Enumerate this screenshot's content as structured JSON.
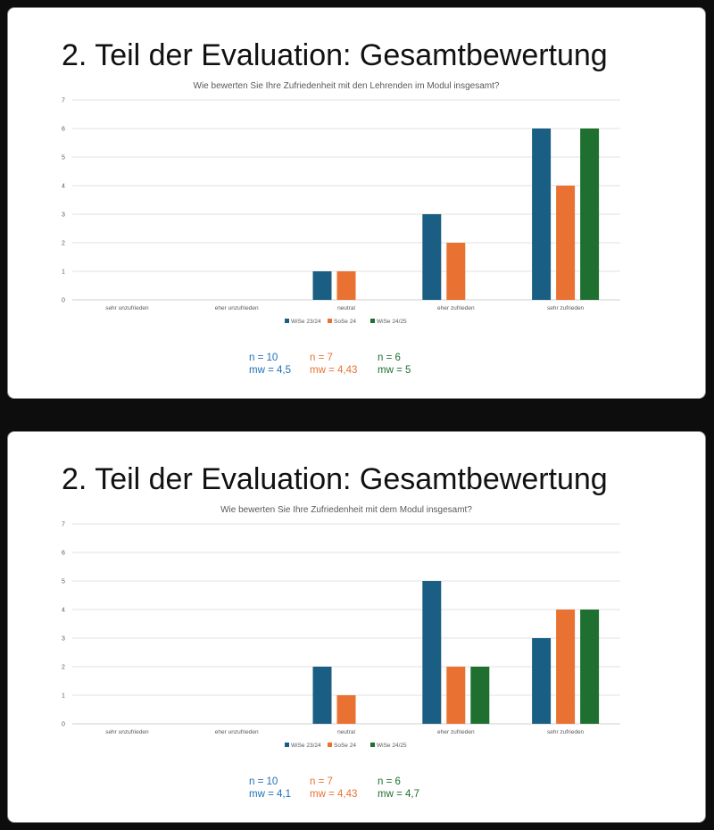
{
  "slides": [
    {
      "title": "2. Teil der Evaluation: Gesamtbewertung",
      "chart_data": {
        "type": "bar",
        "title": "Wie bewerten Sie Ihre Zufriedenheit mit den Lehrenden im Modul insgesamt?",
        "categories": [
          "sehr unzufrieden",
          "eher unzufrieden",
          "neutral",
          "eher zufrieden",
          "sehr zufrieden"
        ],
        "series": [
          {
            "name": "WiSe 23/24",
            "color": "#1a5e83",
            "values": [
              0,
              0,
              1,
              3,
              6
            ]
          },
          {
            "name": "SoSe 24",
            "color": "#e97132",
            "values": [
              0,
              0,
              1,
              2,
              4
            ]
          },
          {
            "name": "WiSe 24/25",
            "color": "#1f7030",
            "values": [
              0,
              0,
              0,
              0,
              6
            ]
          }
        ],
        "ylim": [
          0,
          7
        ],
        "yticks": [
          "0",
          "1",
          "2",
          "3",
          "4",
          "5",
          "6",
          "7"
        ],
        "legend": "bottom",
        "grid": true
      },
      "stats": [
        {
          "n": "n = 10",
          "mw": "mw = 4,5",
          "color": "#1f6fb5"
        },
        {
          "n": "n = 7",
          "mw": "mw = 4,43",
          "color": "#e97132"
        },
        {
          "n": "n = 6",
          "mw": "mw = 5",
          "color": "#1f7030"
        }
      ]
    },
    {
      "title": "2. Teil der Evaluation: Gesamtbewertung",
      "chart_data": {
        "type": "bar",
        "title": "Wie bewerten Sie Ihre Zufriedenheit mit dem Modul insgesamt?",
        "categories": [
          "sehr unzufrieden",
          "eher unzufrieden",
          "neutral",
          "eher zufrieden",
          "sehr zufrieden"
        ],
        "series": [
          {
            "name": "WiSe 23/24",
            "color": "#1a5e83",
            "values": [
              0,
              0,
              2,
              5,
              3
            ]
          },
          {
            "name": "SoSe 24",
            "color": "#e97132",
            "values": [
              0,
              0,
              1,
              2,
              4
            ]
          },
          {
            "name": "WiSe 24/25",
            "color": "#1f7030",
            "values": [
              0,
              0,
              0,
              2,
              4
            ]
          }
        ],
        "ylim": [
          0,
          7
        ],
        "yticks": [
          "0",
          "1",
          "2",
          "3",
          "4",
          "5",
          "6",
          "7"
        ],
        "legend": "bottom",
        "grid": true
      },
      "stats": [
        {
          "n": "n = 10",
          "mw": "mw = 4,1",
          "color": "#1f6fb5"
        },
        {
          "n": "n = 7",
          "mw": "mw = 4,43",
          "color": "#e97132"
        },
        {
          "n": "n = 6",
          "mw": "mw = 4,7",
          "color": "#1f7030"
        }
      ]
    }
  ]
}
